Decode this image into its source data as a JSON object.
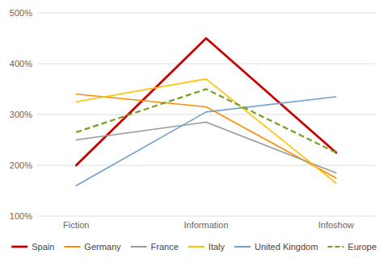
{
  "chart_data": {
    "type": "line",
    "categories": [
      "Fiction",
      "Information",
      "Infoshow"
    ],
    "series": [
      {
        "name": "Spain",
        "color": "#cc0000",
        "line_style": "solid",
        "values": [
          200,
          450,
          225
        ]
      },
      {
        "name": "Germany",
        "color": "#ff8c00",
        "line_style": "solid",
        "values": [
          340,
          315,
          175
        ]
      },
      {
        "name": "France",
        "color": "#999999",
        "line_style": "solid",
        "values": [
          250,
          285,
          185
        ]
      },
      {
        "name": "Italy",
        "color": "#ffc000",
        "line_style": "solid",
        "values": [
          325,
          370,
          165
        ]
      },
      {
        "name": "United Kingdom",
        "color": "#70a0d0",
        "line_style": "solid",
        "values": [
          160,
          305,
          335
        ]
      },
      {
        "name": "Europe",
        "color": "#70a020",
        "line_style": "dashed",
        "values": [
          265,
          350,
          225
        ]
      }
    ],
    "ylim": [
      100,
      500
    ],
    "yticks": [
      {
        "value": 100,
        "label": "100%"
      },
      {
        "value": 200,
        "label": "200%"
      },
      {
        "value": 300,
        "label": "300%"
      },
      {
        "value": 400,
        "label": "400%"
      },
      {
        "value": 500,
        "label": "500%"
      }
    ],
    "grid": true,
    "legend": "bottom"
  }
}
